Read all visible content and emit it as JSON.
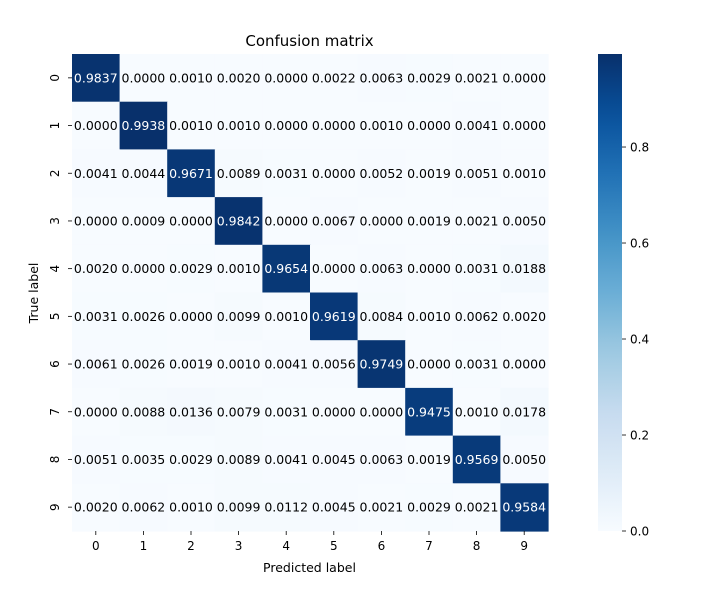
{
  "chart_data": {
    "type": "heatmap",
    "title": "Confusion matrix",
    "xlabel": "Predicted label",
    "ylabel": "True label",
    "x_categories": [
      "0",
      "1",
      "2",
      "3",
      "4",
      "5",
      "6",
      "7",
      "8",
      "9"
    ],
    "y_categories": [
      "0",
      "1",
      "2",
      "3",
      "4",
      "5",
      "6",
      "7",
      "8",
      "9"
    ],
    "values": [
      [
        0.9837,
        0.0,
        0.001,
        0.002,
        0.0,
        0.0022,
        0.0063,
        0.0029,
        0.0021,
        0.0
      ],
      [
        0.0,
        0.9938,
        0.001,
        0.001,
        0.0,
        0.0,
        0.001,
        0.0,
        0.0041,
        0.0
      ],
      [
        0.0041,
        0.0044,
        0.9671,
        0.0089,
        0.0031,
        0.0,
        0.0052,
        0.0019,
        0.0051,
        0.001
      ],
      [
        0.0,
        0.0009,
        0.0,
        0.9842,
        0.0,
        0.0067,
        0.0,
        0.0019,
        0.0021,
        0.005
      ],
      [
        0.002,
        0.0,
        0.0029,
        0.001,
        0.9654,
        0.0,
        0.0063,
        0.0,
        0.0031,
        0.0188
      ],
      [
        0.0031,
        0.0026,
        0.0,
        0.0099,
        0.001,
        0.9619,
        0.0084,
        0.001,
        0.0062,
        0.002
      ],
      [
        0.0061,
        0.0026,
        0.0019,
        0.001,
        0.0041,
        0.0056,
        0.9749,
        0.0,
        0.0031,
        0.0
      ],
      [
        0.0,
        0.0088,
        0.0136,
        0.0079,
        0.0031,
        0.0,
        0.0,
        0.9475,
        0.001,
        0.0178
      ],
      [
        0.0051,
        0.0035,
        0.0029,
        0.0089,
        0.0041,
        0.0045,
        0.0063,
        0.0019,
        0.9569,
        0.005
      ],
      [
        0.002,
        0.0062,
        0.001,
        0.0099,
        0.0112,
        0.0045,
        0.0021,
        0.0029,
        0.0021,
        0.9584
      ]
    ],
    "value_format": "4-decimal",
    "colormap": "Blues",
    "colorbar": {
      "min": 0.0,
      "max": 0.9938,
      "ticks": [
        0.0,
        0.2,
        0.4,
        0.6,
        0.8
      ],
      "tick_labels": [
        "0.0",
        "0.2",
        "0.4",
        "0.6",
        "0.8"
      ]
    },
    "colors": {
      "low": "#f7fbff",
      "high": "#08306b",
      "text_dark": "#000000",
      "text_light": "#ffffff"
    },
    "grid": false
  }
}
